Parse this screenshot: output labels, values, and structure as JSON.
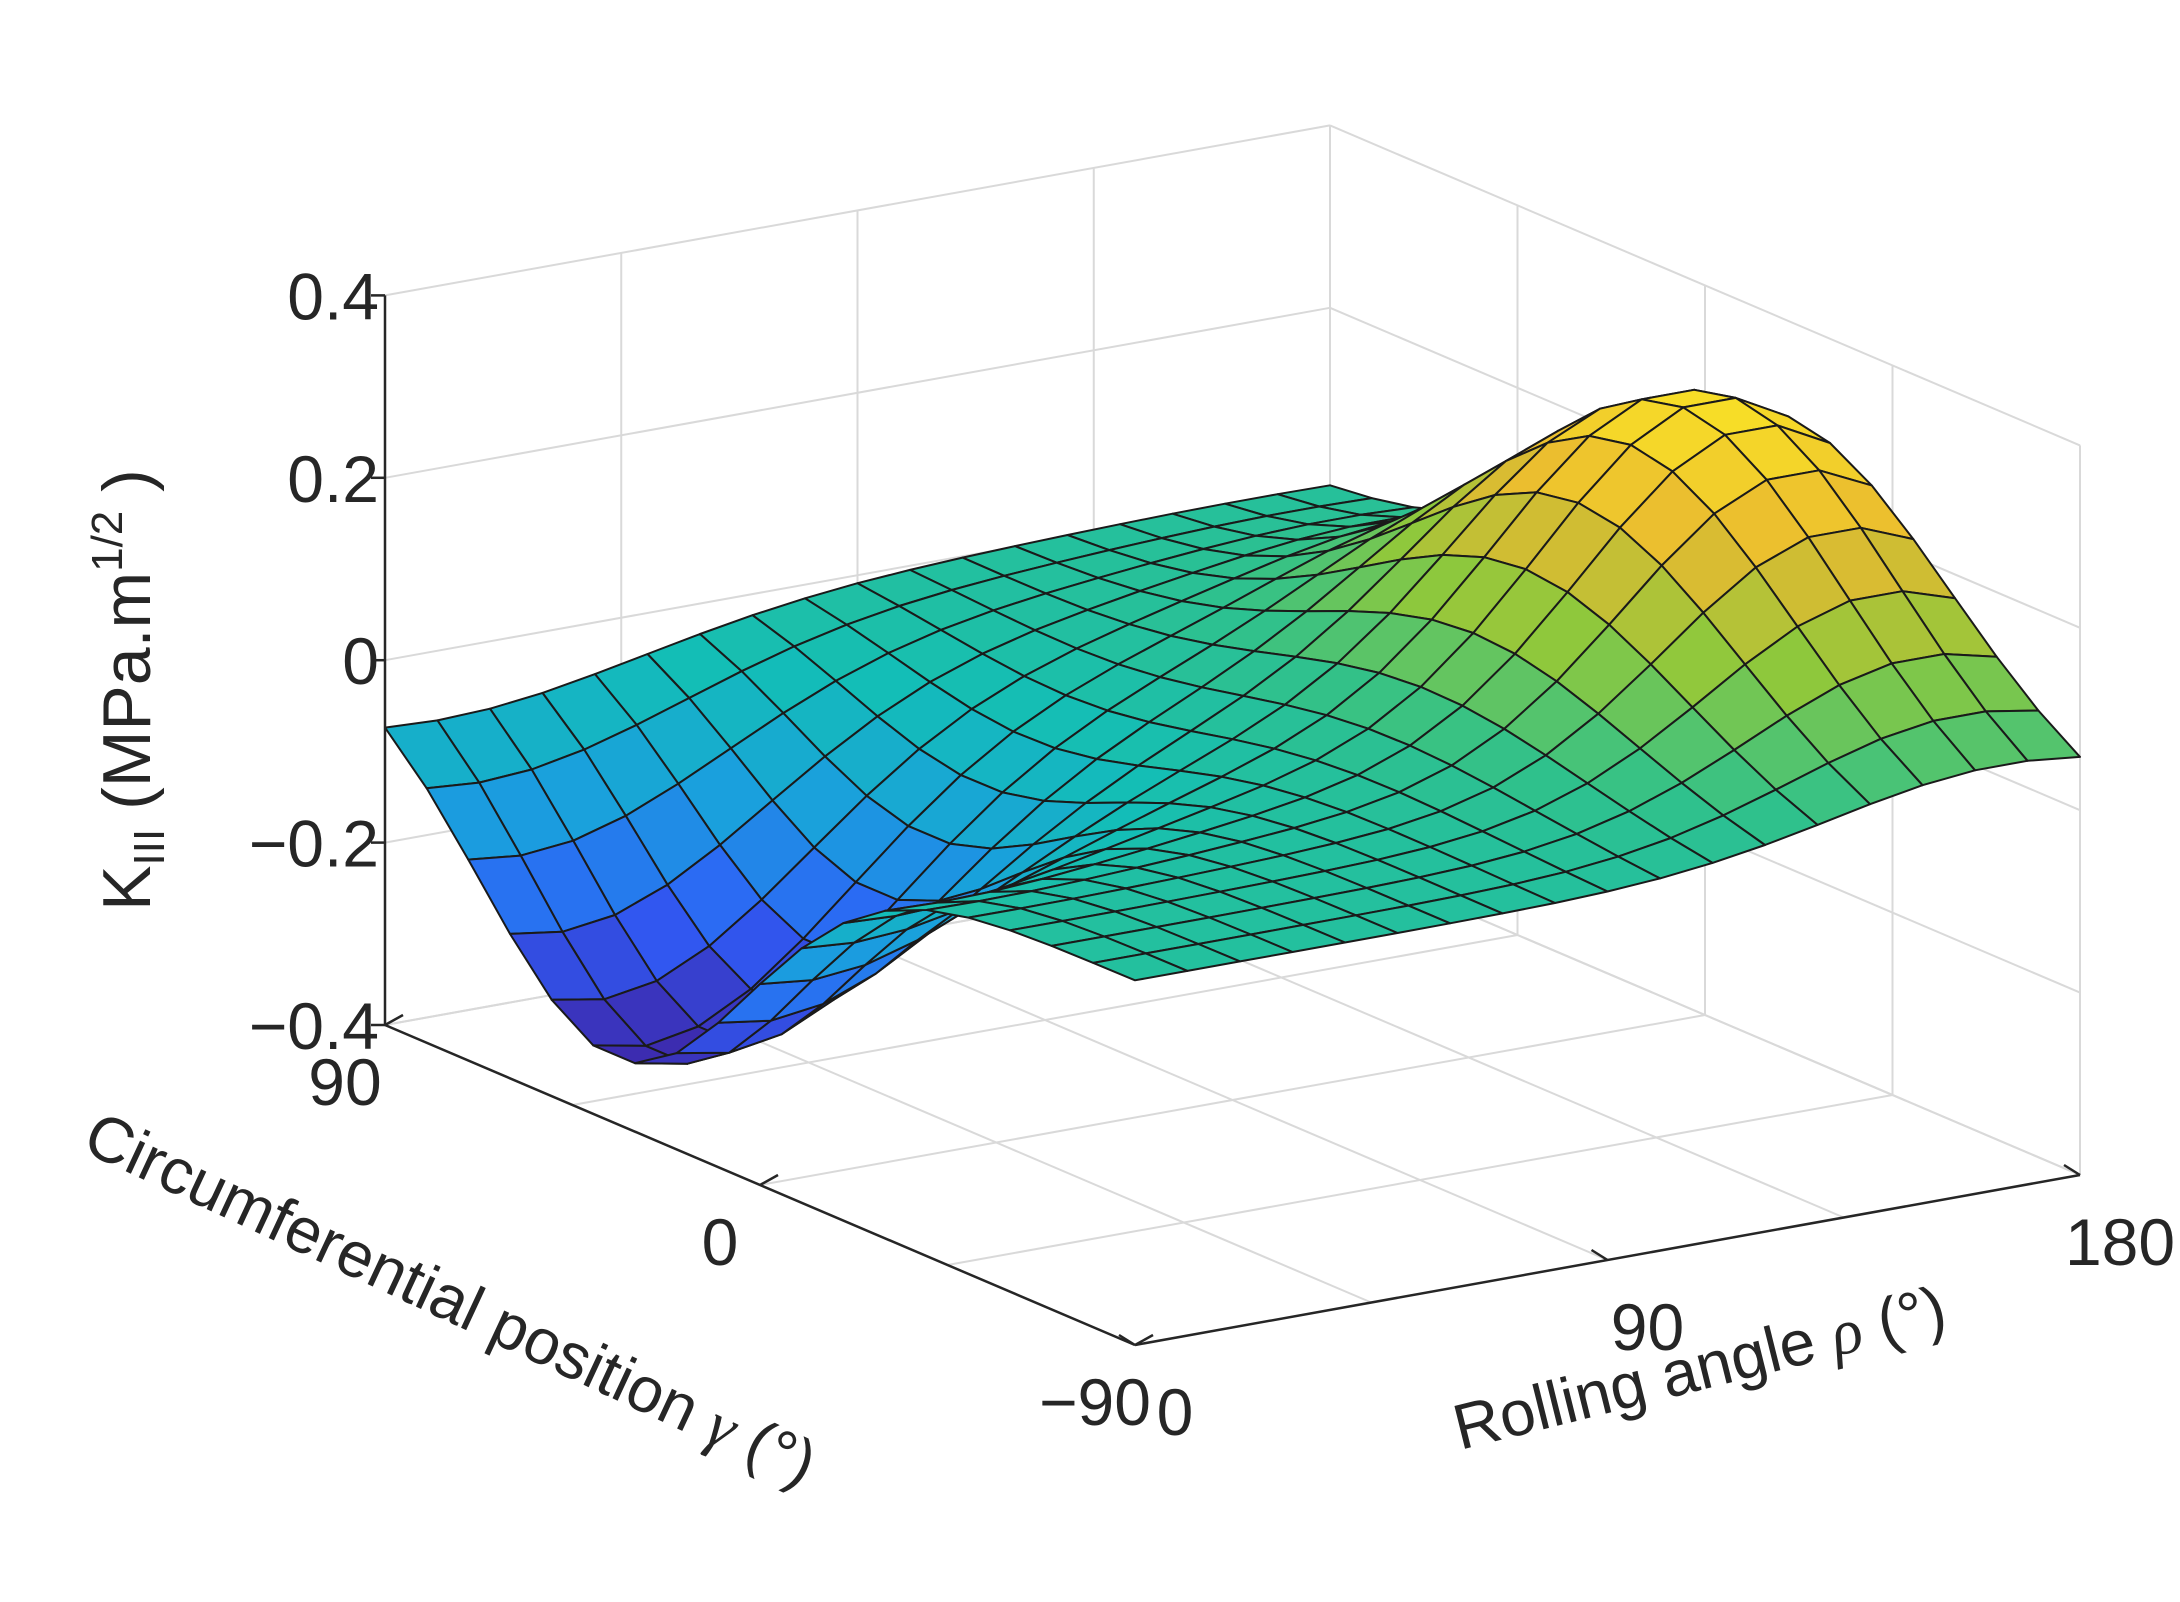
{
  "chart_data": {
    "type": "surface3d",
    "title": "",
    "zlabel": {
      "main": "K",
      "subscript": "III",
      "units_open": " (MPa.m",
      "units_sup": "1/2",
      "units_close": " )"
    },
    "xlabel": {
      "text": "Rolling angle ",
      "symbol": "ρ",
      "unit": " (°)"
    },
    "ylabel": {
      "text": "Circumferential position ",
      "symbol": "γ",
      "unit": " (°)"
    },
    "x_axis": {
      "name": "Rolling angle rho",
      "range": [
        0,
        180
      ],
      "ticks": [
        0,
        90,
        180
      ],
      "tick_labels": [
        "0",
        "90",
        "180"
      ]
    },
    "y_axis": {
      "name": "Circumferential position gamma",
      "range": [
        -90,
        90
      ],
      "ticks": [
        -90,
        0,
        90
      ],
      "tick_labels": [
        "−90",
        "0",
        "90"
      ]
    },
    "z_axis": {
      "range": [
        -0.4,
        0.4
      ],
      "ticks": [
        -0.4,
        -0.2,
        0,
        0.2,
        0.4
      ],
      "tick_labels": [
        "−0.4",
        "−0.2",
        "0",
        "0.2",
        "0.4"
      ]
    },
    "grid": true,
    "colormap": "parula",
    "colormap_stops": [
      "#3e26a8",
      "#2f5df9",
      "#1a9fde",
      "#13beb7",
      "#31c18a",
      "#8fc83c",
      "#e9b930",
      "#f9e126"
    ],
    "edge_color": "#1a1a1a",
    "mesh": {
      "rho_steps": 18,
      "gamma_steps": 18
    },
    "surface_model": {
      "description": "Approximated K_III(rho, gamma) read from the plot",
      "negative_peak": {
        "value": -0.34,
        "rho_center": 10,
        "gamma_center": 35,
        "rho_width": 55,
        "gamma_width": 45
      },
      "positive_peak": {
        "value": 0.33,
        "rho_center": 165,
        "gamma_center": -20,
        "rho_width": 45,
        "gamma_width": 55
      },
      "z_range_observed": [
        -0.34,
        0.33
      ]
    }
  }
}
